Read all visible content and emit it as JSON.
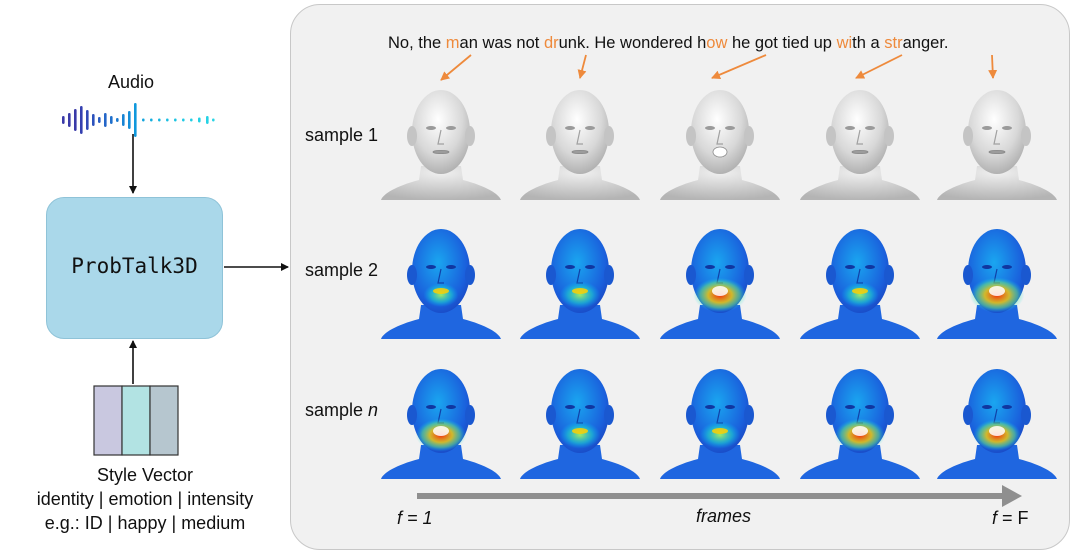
{
  "sentence": {
    "segments": [
      {
        "text": "No, the ",
        "hl": false
      },
      {
        "text": "m",
        "hl": true
      },
      {
        "text": "an was not ",
        "hl": false
      },
      {
        "text": "dr",
        "hl": true
      },
      {
        "text": "unk. He wondered h",
        "hl": false
      },
      {
        "text": "ow",
        "hl": true
      },
      {
        "text": " he got tied up ",
        "hl": false
      },
      {
        "text": "wi",
        "hl": true
      },
      {
        "text": "th a ",
        "hl": false
      },
      {
        "text": "str",
        "hl": true
      },
      {
        "text": "anger.",
        "hl": false
      }
    ]
  },
  "audio_label": "Audio",
  "model_name": "ProbTalk3D",
  "samples": {
    "sample1": "sample 1",
    "sample2": "sample 2",
    "sampleN_prefix": "sample ",
    "sampleN_var": "n"
  },
  "style_vector": {
    "title": "Style Vector",
    "fields": "identity | emotion | intensity",
    "example": "e.g.: ID | happy | medium",
    "segment_colors": [
      "#c9c8e0",
      "#b2e3e3",
      "#b6c6cf"
    ]
  },
  "axis": {
    "start_var": "f",
    "start_eq": " = 1",
    "end_var": "f",
    "end_eq": " = F",
    "label": "frames"
  },
  "colors": {
    "highlight": "#ee8a3c",
    "model_box": "#aad8ea",
    "panel": "#f1f1f1",
    "axis_arrow": "#8f8f8f"
  }
}
